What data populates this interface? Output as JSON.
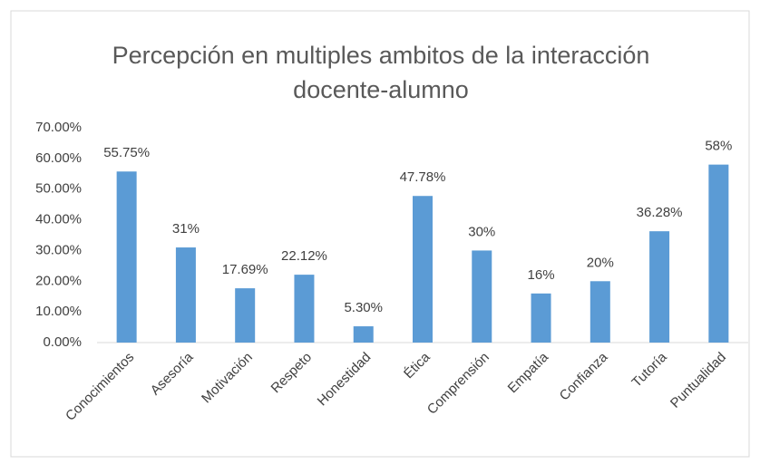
{
  "chart_data": {
    "type": "bar",
    "title": "Percepción en multiples ambitos de la interacción docente-alumno",
    "categories": [
      "Conocimientos",
      "Asesoría",
      "Motivación",
      "Respeto",
      "Honestidad",
      "Ética",
      "Comprensión",
      "Empatía",
      "Confianza",
      "Tutoría",
      "Puntualidad"
    ],
    "values": [
      55.75,
      31,
      17.69,
      22.12,
      5.3,
      47.78,
      30,
      16,
      20,
      36.28,
      58
    ],
    "value_labels": [
      "55.75%",
      "31%",
      "17.69%",
      "22.12%",
      "5.30%",
      "47.78%",
      "30%",
      "16%",
      "20%",
      "36.28%",
      "58%"
    ],
    "color": "#5b9bd5",
    "ylim": [
      0,
      70
    ],
    "yticks": [
      {
        "value": 0,
        "label": "0.00%"
      },
      {
        "value": 10,
        "label": "10.00%"
      },
      {
        "value": 20,
        "label": "20.00%"
      },
      {
        "value": 30,
        "label": "30.00%"
      },
      {
        "value": 40,
        "label": "40.00%"
      },
      {
        "value": 50,
        "label": "50.00%"
      },
      {
        "value": 60,
        "label": "60.00%"
      },
      {
        "value": 70,
        "label": "70.00%"
      }
    ],
    "grid": false
  }
}
